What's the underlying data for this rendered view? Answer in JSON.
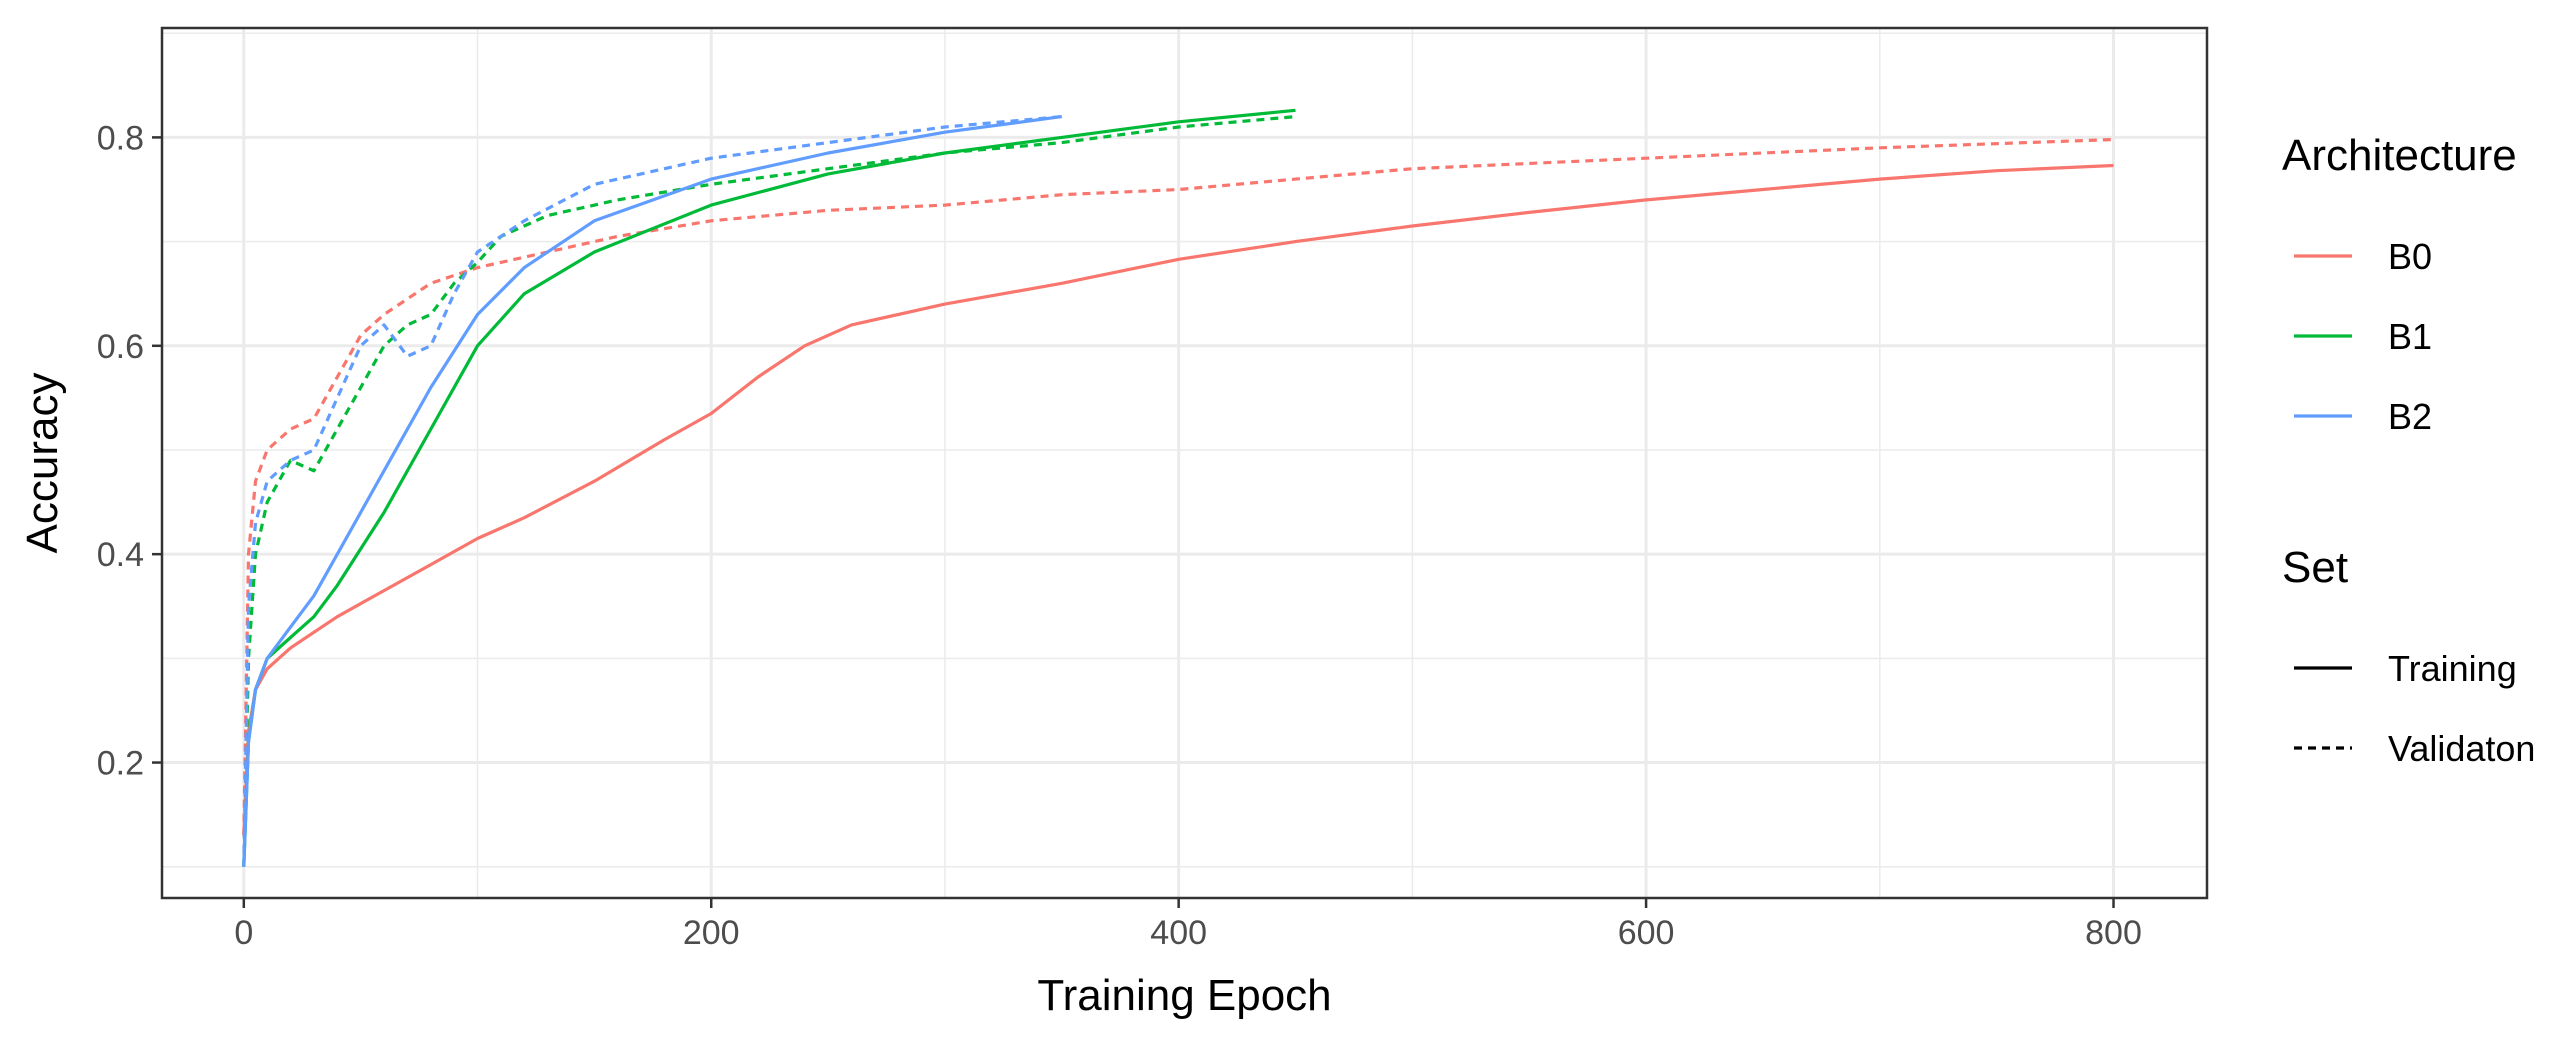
{
  "chart_data": {
    "type": "line",
    "title": "",
    "xlabel": "Training Epoch",
    "ylabel": "Accuracy",
    "xlim": [
      -35,
      840
    ],
    "ylim": [
      0.07,
      0.905
    ],
    "x_ticks": [
      0,
      200,
      400,
      600,
      800
    ],
    "y_ticks": [
      0.2,
      0.4,
      0.6,
      0.8
    ],
    "grid": true,
    "legend": {
      "position": "right",
      "groups": [
        {
          "title": "Architecture",
          "entries": [
            {
              "label": "B0",
              "color": "#F8766D"
            },
            {
              "label": "B1",
              "color": "#00BA38"
            },
            {
              "label": "B2",
              "color": "#619CFF"
            }
          ]
        },
        {
          "title": "Set",
          "entries": [
            {
              "label": "Training",
              "linetype": "solid"
            },
            {
              "label": "Validaton",
              "linetype": "dashed"
            }
          ]
        }
      ]
    },
    "series": [
      {
        "architecture": "B0",
        "set": "Training",
        "color": "#F8766D",
        "linetype": "solid",
        "x": [
          0,
          2,
          5,
          10,
          20,
          40,
          60,
          80,
          100,
          120,
          150,
          180,
          200,
          220,
          240,
          260,
          300,
          350,
          400,
          450,
          500,
          550,
          600,
          650,
          700,
          750,
          800
        ],
        "y": [
          0.13,
          0.23,
          0.27,
          0.29,
          0.31,
          0.34,
          0.365,
          0.39,
          0.415,
          0.435,
          0.47,
          0.51,
          0.535,
          0.57,
          0.6,
          0.62,
          0.64,
          0.66,
          0.683,
          0.7,
          0.715,
          0.728,
          0.74,
          0.75,
          0.76,
          0.768,
          0.773
        ]
      },
      {
        "architecture": "B0",
        "set": "Validaton",
        "color": "#F8766D",
        "linetype": "dashed",
        "x": [
          0,
          2,
          5,
          10,
          20,
          30,
          40,
          50,
          60,
          80,
          100,
          130,
          160,
          200,
          250,
          300,
          350,
          400,
          500,
          600,
          700,
          800
        ],
        "y": [
          0.13,
          0.4,
          0.47,
          0.5,
          0.52,
          0.53,
          0.57,
          0.61,
          0.63,
          0.66,
          0.675,
          0.69,
          0.705,
          0.72,
          0.73,
          0.735,
          0.745,
          0.75,
          0.77,
          0.78,
          0.79,
          0.798
        ]
      },
      {
        "architecture": "B1",
        "set": "Training",
        "color": "#00BA38",
        "linetype": "solid",
        "x": [
          0,
          2,
          5,
          10,
          20,
          30,
          40,
          60,
          80,
          100,
          120,
          150,
          200,
          250,
          300,
          350,
          400,
          450
        ],
        "y": [
          0.1,
          0.22,
          0.27,
          0.3,
          0.32,
          0.34,
          0.37,
          0.44,
          0.52,
          0.6,
          0.65,
          0.69,
          0.735,
          0.765,
          0.785,
          0.8,
          0.815,
          0.826
        ]
      },
      {
        "architecture": "B1",
        "set": "Validaton",
        "color": "#00BA38",
        "linetype": "dashed",
        "x": [
          0,
          2,
          5,
          10,
          20,
          30,
          40,
          50,
          60,
          70,
          80,
          90,
          100,
          110,
          130,
          160,
          200,
          250,
          300,
          350,
          400,
          450
        ],
        "y": [
          0.1,
          0.3,
          0.4,
          0.45,
          0.49,
          0.48,
          0.52,
          0.56,
          0.6,
          0.62,
          0.63,
          0.66,
          0.68,
          0.705,
          0.725,
          0.74,
          0.755,
          0.77,
          0.785,
          0.795,
          0.81,
          0.82
        ]
      },
      {
        "architecture": "B2",
        "set": "Training",
        "color": "#619CFF",
        "linetype": "solid",
        "x": [
          0,
          2,
          5,
          10,
          20,
          30,
          40,
          60,
          80,
          100,
          120,
          150,
          200,
          250,
          300,
          350
        ],
        "y": [
          0.1,
          0.22,
          0.27,
          0.3,
          0.33,
          0.36,
          0.4,
          0.48,
          0.56,
          0.63,
          0.675,
          0.72,
          0.76,
          0.785,
          0.805,
          0.82
        ]
      },
      {
        "architecture": "B2",
        "set": "Validaton",
        "color": "#619CFF",
        "linetype": "dashed",
        "x": [
          0,
          2,
          5,
          10,
          20,
          30,
          40,
          50,
          60,
          70,
          80,
          90,
          100,
          120,
          150,
          180,
          200,
          250,
          300,
          350
        ],
        "y": [
          0.1,
          0.35,
          0.43,
          0.47,
          0.49,
          0.5,
          0.55,
          0.6,
          0.62,
          0.59,
          0.6,
          0.65,
          0.69,
          0.72,
          0.755,
          0.77,
          0.78,
          0.795,
          0.81,
          0.82
        ]
      }
    ]
  }
}
